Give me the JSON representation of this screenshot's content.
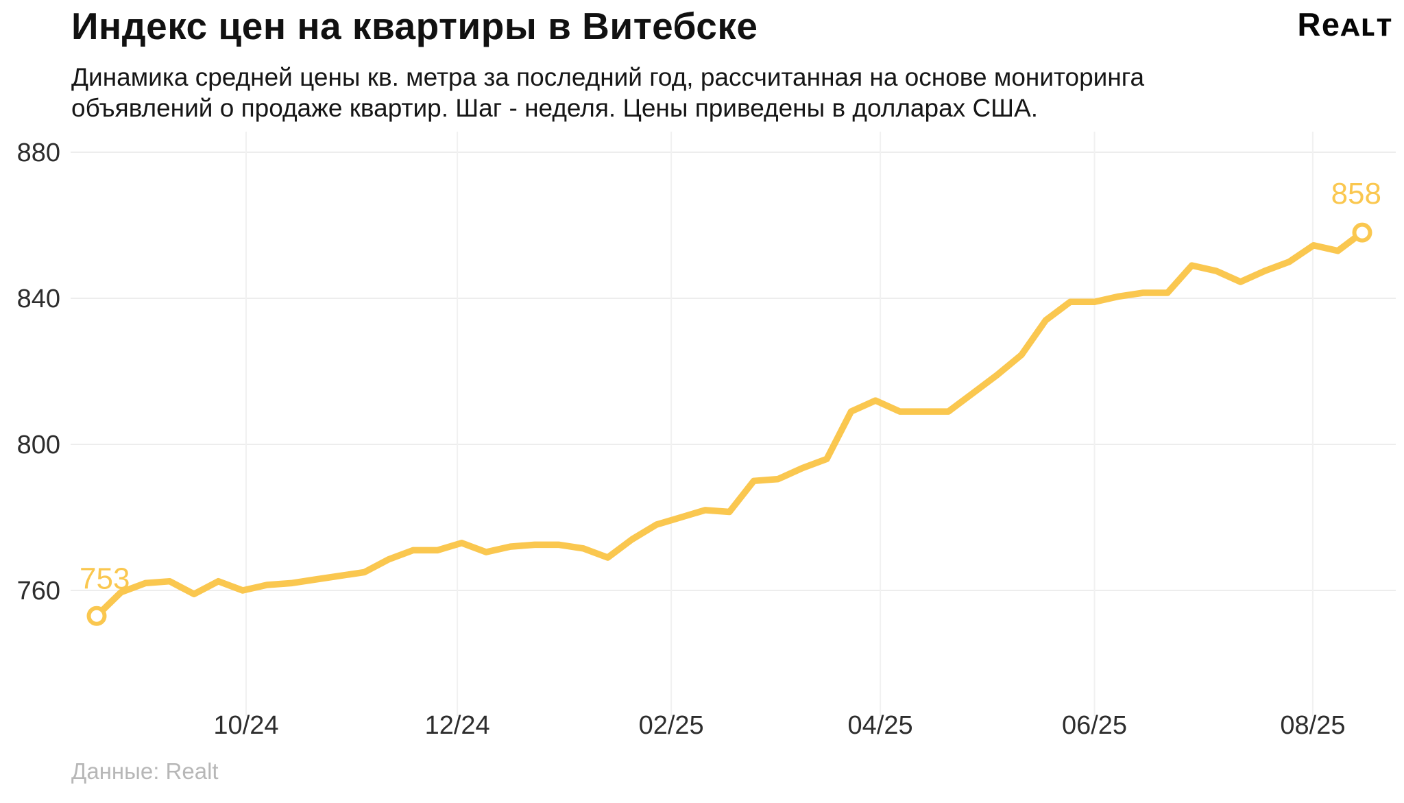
{
  "header": {
    "title": "Индекс цен на квартиры в Витебске",
    "subtitle_line1": "Динамика средней цены кв. метра за последний год, рассчитанная на основе мониторинга",
    "subtitle_line2": "объявлений о продаже квартир. Шаг - неделя. Цены приведены в долларах США.",
    "logo": "Reᴀʟᴛ"
  },
  "footer": {
    "source": "Данные: Realt"
  },
  "chart_data": {
    "type": "line",
    "title": "Индекс цен на квартиры в Витебске",
    "step": "week",
    "ylim": [
      738,
      892
    ],
    "yticks": [
      760,
      800,
      840,
      880
    ],
    "grid": true,
    "xticks": [
      {
        "label": "10/24",
        "week": 6.14
      },
      {
        "label": "12/24",
        "week": 14.82
      },
      {
        "label": "02/25",
        "week": 23.61
      },
      {
        "label": "04/25",
        "week": 32.2
      },
      {
        "label": "06/25",
        "week": 41.0
      },
      {
        "label": "08/25",
        "week": 49.97
      }
    ],
    "values": [
      753,
      759.5,
      762,
      762.5,
      759,
      762.5,
      760,
      761.5,
      762,
      763,
      764,
      765,
      768.5,
      771,
      771,
      773,
      770.5,
      772,
      772.5,
      772.5,
      771.5,
      769,
      774,
      778,
      780,
      782,
      781.5,
      790,
      790.5,
      793.5,
      796,
      809,
      812,
      809,
      809,
      809,
      814,
      819,
      824.5,
      834,
      839,
      839,
      840.5,
      841.5,
      841.5,
      849,
      847.5,
      844.5,
      847.5,
      850,
      854.5,
      853,
      858
    ],
    "start_label": "753",
    "end_label": "858",
    "line_color": "#FAC74F",
    "grid_color": "#EDEDED",
    "vgrid_color": "#F1F1F1",
    "axis_text_color": "#2D2D2D"
  }
}
